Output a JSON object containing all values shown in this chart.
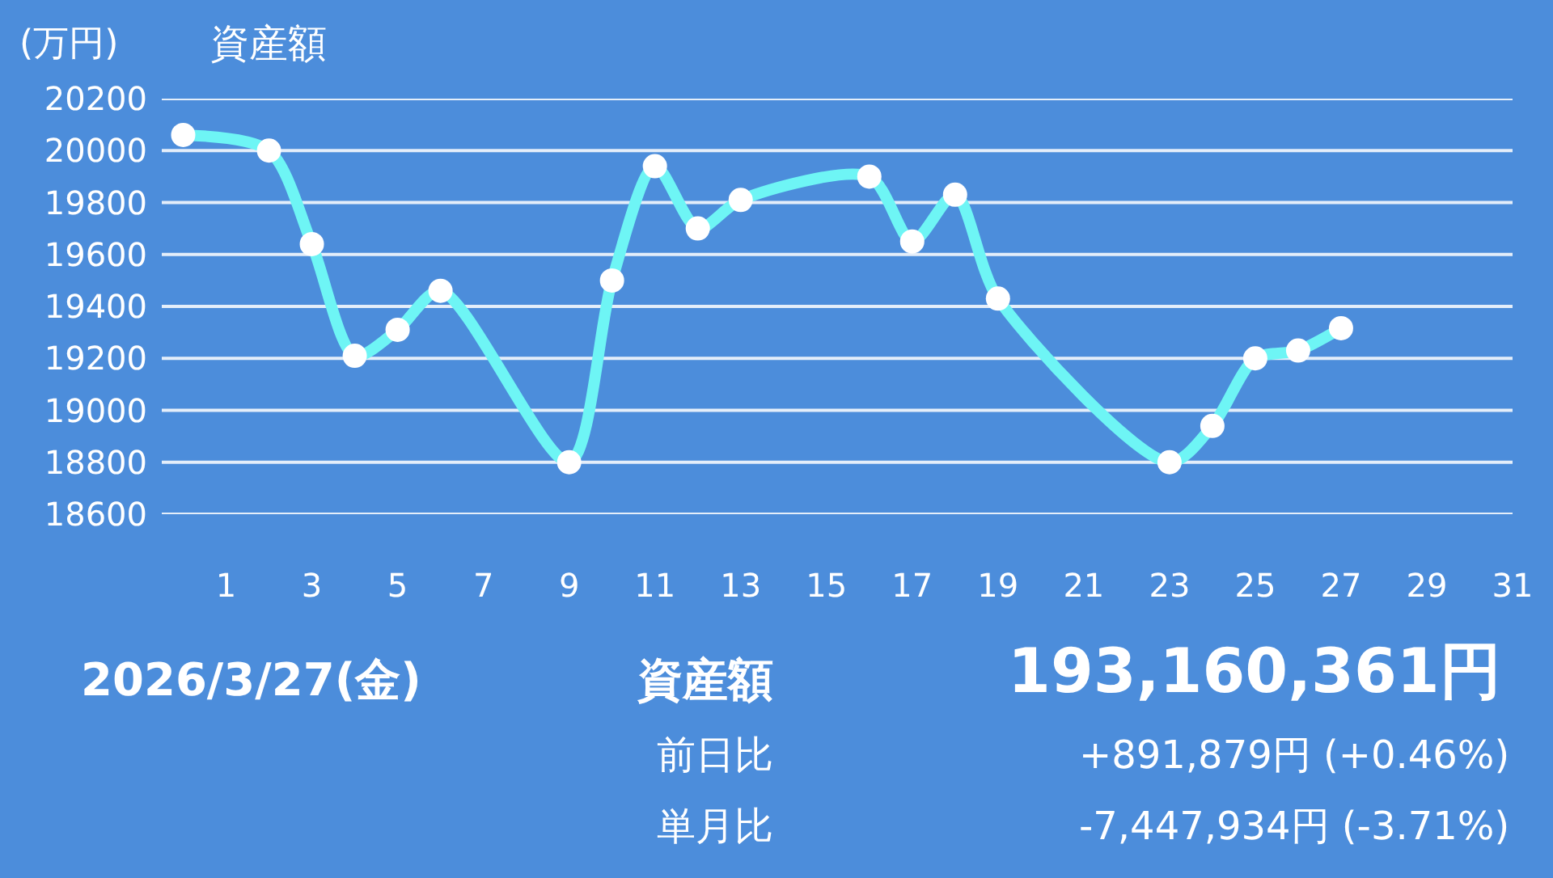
{
  "chart_data": {
    "type": "line",
    "title": "資産額",
    "ylabel": "(万円)",
    "x": [
      0,
      2,
      3,
      4,
      5,
      6,
      9,
      10,
      11,
      12,
      13,
      16,
      17,
      18,
      19,
      23,
      24,
      25,
      26,
      27
    ],
    "series": [
      {
        "color": "#6ef5f5",
        "values": [
          20060,
          20000,
          19640,
          19210,
          19310,
          19460,
          18800,
          19500,
          19940,
          19700,
          19810,
          19900,
          19650,
          19830,
          19430,
          18800,
          18940,
          19200,
          19230,
          19316
        ]
      }
    ],
    "xlim": [
      -0.5,
      31
    ],
    "xticks": [
      1,
      3,
      5,
      7,
      9,
      11,
      13,
      15,
      17,
      19,
      21,
      23,
      25,
      27,
      29,
      31
    ],
    "ylim": [
      18600,
      20200
    ],
    "yticks": [
      18600,
      18800,
      19000,
      19200,
      19400,
      19600,
      19800,
      20000,
      20200
    ],
    "grid": "y",
    "marker": "circle",
    "line_style": "solid",
    "annotations": [
      "2026/3/27(金)",
      "資産額",
      "193,160,361円",
      "前日比",
      "+891,879円 (+0.46%)",
      "単月比",
      "-7,447,934円 (-3.71%)"
    ]
  }
}
